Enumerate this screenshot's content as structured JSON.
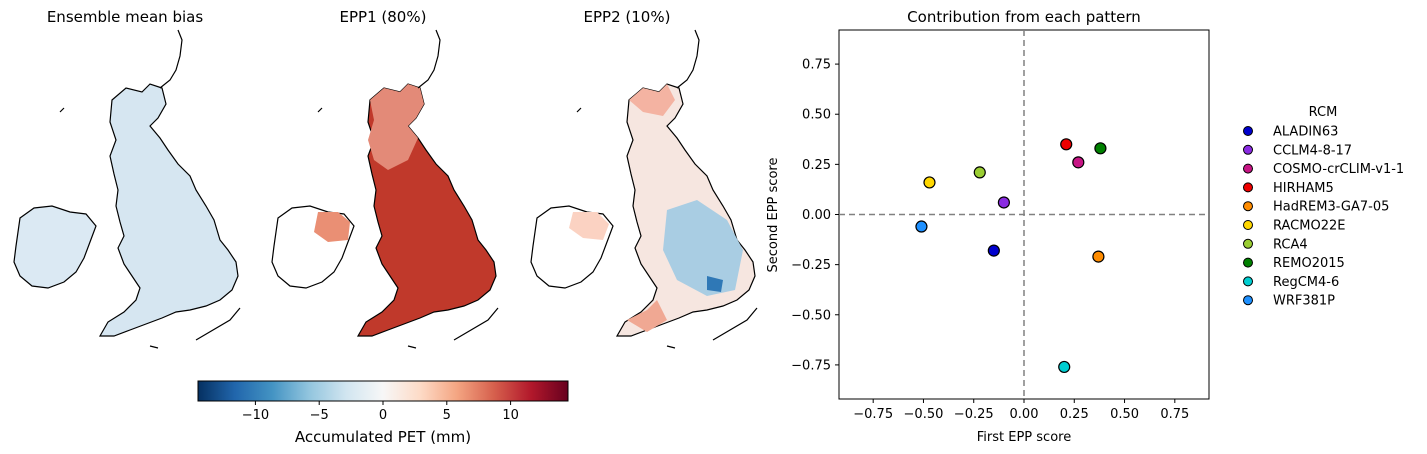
{
  "maps": {
    "panels": [
      {
        "title": "Ensemble mean bias",
        "pattern": "bias"
      },
      {
        "title": "EPP1 (80%)",
        "pattern": "epp1"
      },
      {
        "title": "EPP2 (10%)",
        "pattern": "epp2"
      }
    ],
    "colorbar": {
      "label": "Accumulated PET (mm)",
      "range": [
        -14.5,
        14.5
      ],
      "ticks": [
        -10,
        -5,
        0,
        5,
        10
      ],
      "tick_labels": [
        "−10",
        "−5",
        "0",
        "5",
        "10"
      ],
      "colormap": "RdBu_r"
    }
  },
  "chart_data": {
    "type": "scatter",
    "title": "Contribution from each pattern",
    "xlabel": "First EPP score",
    "ylabel": "Second EPP score",
    "xlim": [
      -0.92,
      0.92
    ],
    "ylim": [
      -0.92,
      0.92
    ],
    "xticks": [
      -0.75,
      -0.5,
      -0.25,
      0.0,
      0.25,
      0.5,
      0.75
    ],
    "xtick_labels": [
      "−0.75",
      "−0.50",
      "−0.25",
      "0.00",
      "0.25",
      "0.50",
      "0.75"
    ],
    "yticks": [
      0.75,
      0.5,
      0.25,
      0.0,
      -0.25,
      -0.5,
      -0.75
    ],
    "ytick_labels": [
      "0.75",
      "0.50",
      "0.25",
      "0.00",
      "−0.25",
      "−0.50",
      "−0.75"
    ],
    "reference_lines": {
      "x": 0,
      "y": 0,
      "style": "dashed",
      "color": "#808080"
    },
    "legend": {
      "title": "RCM",
      "placement": "outside-right"
    },
    "points": [
      {
        "label": "ALADIN63",
        "x": -0.15,
        "y": -0.18,
        "color": "#0000cd"
      },
      {
        "label": "CCLM4-8-17",
        "x": -0.1,
        "y": 0.06,
        "color": "#8a2be2"
      },
      {
        "label": "COSMO-crCLIM-v1-1",
        "x": 0.27,
        "y": 0.26,
        "color": "#c71585"
      },
      {
        "label": "HIRHAM5",
        "x": 0.21,
        "y": 0.35,
        "color": "#ee0000"
      },
      {
        "label": "HadREM3-GA7-05",
        "x": 0.37,
        "y": -0.21,
        "color": "#ff8c00"
      },
      {
        "label": "RACMO22E",
        "x": -0.47,
        "y": 0.16,
        "color": "#ffd700"
      },
      {
        "label": "RCA4",
        "x": -0.22,
        "y": 0.21,
        "color": "#9acd32"
      },
      {
        "label": "REMO2015",
        "x": 0.38,
        "y": 0.33,
        "color": "#008000"
      },
      {
        "label": "RegCM4-6",
        "x": 0.2,
        "y": -0.76,
        "color": "#00ced1"
      },
      {
        "label": "WRF381P",
        "x": -0.51,
        "y": -0.06,
        "color": "#1e90ff"
      }
    ]
  }
}
